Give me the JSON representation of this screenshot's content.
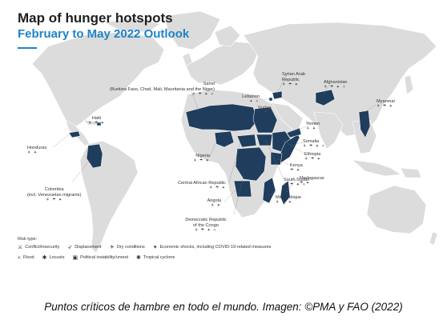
{
  "map": {
    "title": "Map of hunger hotspots",
    "subtitle": "February to May 2022 Outlook",
    "colors": {
      "land": "#dcdcdc",
      "hotspot": "#1f3d5c",
      "ocean": "#ffffff",
      "accent": "#1d84c8"
    }
  },
  "hotspots": [
    {
      "id": "haiti",
      "label": "Haiti",
      "icons": "⚘ ☂ ✦"
    },
    {
      "id": "honduras",
      "label": "Honduras",
      "icons": "⚘ ✦"
    },
    {
      "id": "colombia",
      "label": "Colombia\n(incl. Venezuelan migrants)",
      "icons": "⚘ ☂ ✦"
    },
    {
      "id": "sahel",
      "label": "Sahel\n(Burkina Faso, Chad, Mali, Mauritania and the Niger)",
      "icons": "⚘ ☂ ✦ ✧"
    },
    {
      "id": "nigeria",
      "label": "Nigeria",
      "icons": "⚘ ☂ ✦"
    },
    {
      "id": "car",
      "label": "Central African Republic",
      "icons": "⚘ ☂ ✦"
    },
    {
      "id": "angola",
      "label": "Angola",
      "icons": "⚘ ✦"
    },
    {
      "id": "drc",
      "label": "Democratic Republic\nof the Congo",
      "icons": "⚘ ☂ ✦ ✧"
    },
    {
      "id": "lebanon",
      "label": "Lebanon",
      "icons": "✦ ✧"
    },
    {
      "id": "sudan",
      "label": "Sudan",
      "icons": "⚘ ☂ ✦"
    },
    {
      "id": "syria",
      "label": "Syrian Arab\nRepublic",
      "icons": "⚘ ☂ ✦"
    },
    {
      "id": "afghanistan",
      "label": "Afghanistan",
      "icons": "⚘ ☂ ✦ ✧"
    },
    {
      "id": "yemen",
      "label": "Yemen",
      "icons": "⚘ ✦"
    },
    {
      "id": "somalia",
      "label": "Somalia",
      "icons": "⚘ ☂ ✦ ✧"
    },
    {
      "id": "ethiopia",
      "label": "Ethiopia",
      "icons": "⚘ ☂ ✦"
    },
    {
      "id": "kenya",
      "label": "Kenya",
      "icons": "☂ ✦"
    },
    {
      "id": "south_sudan",
      "label": "South Sudan",
      "icons": "⚘ ☂ ✦ ✧"
    },
    {
      "id": "madagascar",
      "label": "Madagascar",
      "icons": "☂ ✦"
    },
    {
      "id": "mozambique",
      "label": "Mozambique",
      "icons": "⚘ ☂ ✦"
    },
    {
      "id": "myanmar",
      "label": "Myanmar",
      "icons": "⚘ ☂ ✦"
    }
  ],
  "legend": {
    "title": "Risk type:",
    "items": [
      {
        "icon": "conflict-icon",
        "glyph": "⚔",
        "label": "Conflict/insecurity"
      },
      {
        "icon": "displacement-icon",
        "glyph": "➶",
        "label": "Displacement"
      },
      {
        "icon": "dry-conditions-icon",
        "glyph": "☀",
        "label": "Dry conditions"
      },
      {
        "icon": "economic-shocks-icon",
        "glyph": "✦",
        "label": "Economic shocks, including COVID-19-related measures"
      },
      {
        "icon": "flood-icon",
        "glyph": "≈",
        "label": "Flood"
      },
      {
        "icon": "locusts-icon",
        "glyph": "✱",
        "label": "Locusts"
      },
      {
        "icon": "political-instability-icon",
        "glyph": "▣",
        "label": "Political instability/unrest"
      },
      {
        "icon": "tropical-cyclone-icon",
        "glyph": "✺",
        "label": "Tropical cyclone"
      }
    ]
  },
  "caption": "Puntos críticos de hambre en todo el mundo. Imagen: ©PMA y FAO (2022)"
}
